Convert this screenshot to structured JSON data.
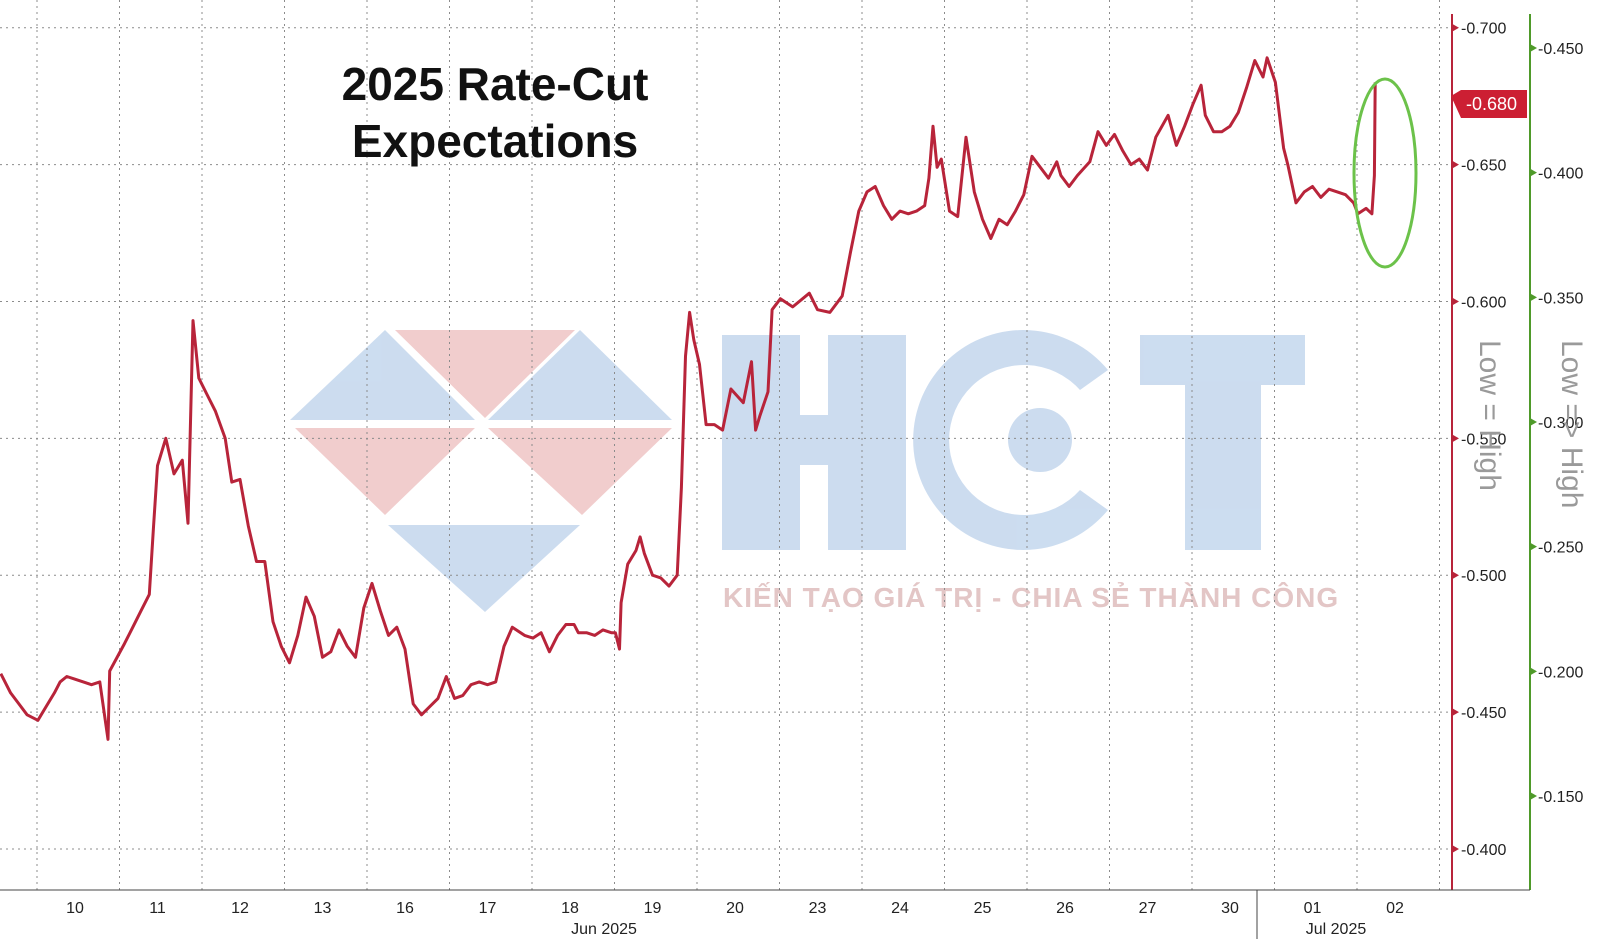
{
  "chart_data": {
    "type": "line",
    "title_lines": [
      "2025 Rate-Cut",
      "Expectations"
    ],
    "x_ticks": [
      "10",
      "11",
      "12",
      "13",
      "16",
      "17",
      "18",
      "19",
      "20",
      "23",
      "24",
      "25",
      "26",
      "27",
      "30",
      "01",
      "02"
    ],
    "month_labels": [
      "Jun 2025",
      "Jul 2025"
    ],
    "y_left": {
      "ticks": [
        "-0.700",
        "-0.650",
        "-0.600",
        "-0.550",
        "-0.500",
        "-0.450",
        "-0.400"
      ],
      "range": [
        -0.705,
        -0.385
      ],
      "axis_label": "Low = High",
      "color": "#b8243a"
    },
    "y_right": {
      "ticks": [
        "-0.450",
        "-0.400",
        "-0.350",
        "-0.300",
        "-0.250",
        "-0.200",
        "-0.150"
      ],
      "axis_label": "Low => High",
      "color": "#4f9a2a"
    },
    "last_value_label": "-0.680",
    "series": [
      {
        "color": "#b8243a",
        "points": [
          [
            0.0,
            -0.464
          ],
          [
            0.12,
            -0.457
          ],
          [
            0.22,
            -0.453
          ],
          [
            0.32,
            -0.449
          ],
          [
            0.45,
            -0.447
          ],
          [
            0.55,
            -0.452
          ],
          [
            0.65,
            -0.457
          ],
          [
            0.72,
            -0.461
          ],
          [
            0.8,
            -0.463
          ],
          [
            0.9,
            -0.462
          ],
          [
            1.0,
            -0.461
          ],
          [
            1.1,
            -0.46
          ],
          [
            1.2,
            -0.461
          ],
          [
            1.3,
            -0.44
          ],
          [
            1.32,
            -0.465
          ],
          [
            1.5,
            -0.475
          ],
          [
            1.6,
            -0.481
          ],
          [
            1.7,
            -0.487
          ],
          [
            1.8,
            -0.493
          ],
          [
            1.85,
            -0.517
          ],
          [
            1.9,
            -0.54
          ],
          [
            2.0,
            -0.55
          ],
          [
            2.1,
            -0.537
          ],
          [
            2.2,
            -0.542
          ],
          [
            2.27,
            -0.519
          ],
          [
            2.33,
            -0.593
          ],
          [
            2.4,
            -0.572
          ],
          [
            2.5,
            -0.566
          ],
          [
            2.6,
            -0.56
          ],
          [
            2.72,
            -0.55
          ],
          [
            2.8,
            -0.534
          ],
          [
            2.9,
            -0.535
          ],
          [
            3.0,
            -0.518
          ],
          [
            3.1,
            -0.505
          ],
          [
            3.2,
            -0.505
          ],
          [
            3.3,
            -0.483
          ],
          [
            3.4,
            -0.474
          ],
          [
            3.5,
            -0.468
          ],
          [
            3.6,
            -0.478
          ],
          [
            3.7,
            -0.492
          ],
          [
            3.8,
            -0.485
          ],
          [
            3.9,
            -0.47
          ],
          [
            4.0,
            -0.472
          ],
          [
            4.1,
            -0.48
          ],
          [
            4.2,
            -0.474
          ],
          [
            4.3,
            -0.47
          ],
          [
            4.4,
            -0.488
          ],
          [
            4.5,
            -0.497
          ],
          [
            4.6,
            -0.487
          ],
          [
            4.7,
            -0.478
          ],
          [
            4.8,
            -0.481
          ],
          [
            4.9,
            -0.473
          ],
          [
            5.0,
            -0.453
          ],
          [
            5.1,
            -0.449
          ],
          [
            5.2,
            -0.452
          ],
          [
            5.3,
            -0.455
          ],
          [
            5.4,
            -0.463
          ],
          [
            5.5,
            -0.455
          ],
          [
            5.6,
            -0.456
          ],
          [
            5.7,
            -0.46
          ],
          [
            5.8,
            -0.461
          ],
          [
            5.9,
            -0.46
          ],
          [
            6.0,
            -0.461
          ],
          [
            6.1,
            -0.474
          ],
          [
            6.2,
            -0.481
          ],
          [
            6.35,
            -0.478
          ],
          [
            6.45,
            -0.477
          ],
          [
            6.55,
            -0.479
          ],
          [
            6.65,
            -0.472
          ],
          [
            6.75,
            -0.478
          ],
          [
            6.85,
            -0.482
          ],
          [
            6.95,
            -0.482
          ],
          [
            7.0,
            -0.479
          ],
          [
            7.1,
            -0.479
          ],
          [
            7.2,
            -0.478
          ],
          [
            7.3,
            -0.48
          ],
          [
            7.4,
            -0.479
          ],
          [
            7.45,
            -0.479
          ],
          [
            7.5,
            -0.473
          ],
          [
            7.52,
            -0.49
          ],
          [
            7.6,
            -0.504
          ],
          [
            7.7,
            -0.509
          ],
          [
            7.75,
            -0.514
          ],
          [
            7.8,
            -0.508
          ],
          [
            7.9,
            -0.5
          ],
          [
            8.0,
            -0.499
          ],
          [
            8.1,
            -0.496
          ],
          [
            8.2,
            -0.5
          ],
          [
            8.25,
            -0.532
          ],
          [
            8.3,
            -0.58
          ],
          [
            8.35,
            -0.596
          ],
          [
            8.4,
            -0.586
          ],
          [
            8.47,
            -0.577
          ],
          [
            8.55,
            -0.555
          ],
          [
            8.65,
            -0.555
          ],
          [
            8.75,
            -0.553
          ],
          [
            8.85,
            -0.568
          ],
          [
            9.0,
            -0.563
          ],
          [
            9.1,
            -0.578
          ],
          [
            9.15,
            -0.553
          ],
          [
            9.2,
            -0.558
          ],
          [
            9.3,
            -0.567
          ],
          [
            9.35,
            -0.597
          ],
          [
            9.45,
            -0.601
          ],
          [
            9.6,
            -0.598
          ],
          [
            9.8,
            -0.603
          ],
          [
            9.9,
            -0.597
          ],
          [
            10.05,
            -0.596
          ],
          [
            10.2,
            -0.602
          ],
          [
            10.3,
            -0.618
          ],
          [
            10.4,
            -0.633
          ],
          [
            10.5,
            -0.64
          ],
          [
            10.6,
            -0.642
          ],
          [
            10.7,
            -0.635
          ],
          [
            10.8,
            -0.63
          ],
          [
            10.9,
            -0.633
          ],
          [
            11.0,
            -0.632
          ],
          [
            11.1,
            -0.633
          ],
          [
            11.2,
            -0.635
          ],
          [
            11.25,
            -0.645
          ],
          [
            11.3,
            -0.664
          ],
          [
            11.35,
            -0.649
          ],
          [
            11.4,
            -0.652
          ],
          [
            11.5,
            -0.633
          ],
          [
            11.6,
            -0.631
          ],
          [
            11.7,
            -0.66
          ],
          [
            11.8,
            -0.64
          ],
          [
            11.9,
            -0.63
          ],
          [
            12.0,
            -0.623
          ],
          [
            12.1,
            -0.63
          ],
          [
            12.2,
            -0.628
          ],
          [
            12.3,
            -0.633
          ],
          [
            12.4,
            -0.639
          ],
          [
            12.5,
            -0.653
          ],
          [
            12.6,
            -0.649
          ],
          [
            12.7,
            -0.645
          ],
          [
            12.8,
            -0.651
          ],
          [
            12.85,
            -0.646
          ],
          [
            12.95,
            -0.642
          ],
          [
            13.05,
            -0.646
          ],
          [
            13.2,
            -0.651
          ],
          [
            13.3,
            -0.662
          ],
          [
            13.4,
            -0.657
          ],
          [
            13.5,
            -0.661
          ],
          [
            13.6,
            -0.655
          ],
          [
            13.7,
            -0.65
          ],
          [
            13.8,
            -0.652
          ],
          [
            13.9,
            -0.648
          ],
          [
            14.0,
            -0.66
          ],
          [
            14.15,
            -0.668
          ],
          [
            14.25,
            -0.657
          ],
          [
            14.35,
            -0.664
          ],
          [
            14.45,
            -0.672
          ],
          [
            14.55,
            -0.679
          ],
          [
            14.6,
            -0.668
          ],
          [
            14.7,
            -0.662
          ],
          [
            14.8,
            -0.662
          ],
          [
            14.9,
            -0.664
          ],
          [
            15.0,
            -0.669
          ],
          [
            15.1,
            -0.678
          ],
          [
            15.2,
            -0.688
          ],
          [
            15.3,
            -0.682
          ],
          [
            15.35,
            -0.689
          ],
          [
            15.45,
            -0.68
          ],
          [
            15.55,
            -0.656
          ],
          [
            15.6,
            -0.65
          ],
          [
            15.7,
            -0.636
          ],
          [
            15.8,
            -0.64
          ],
          [
            15.9,
            -0.642
          ],
          [
            16.0,
            -0.638
          ],
          [
            16.1,
            -0.641
          ],
          [
            16.2,
            -0.64
          ],
          [
            16.3,
            -0.639
          ],
          [
            16.4,
            -0.636
          ],
          [
            16.45,
            -0.632
          ],
          [
            16.55,
            -0.634
          ],
          [
            16.62,
            -0.632
          ],
          [
            16.65,
            -0.646
          ],
          [
            16.66,
            -0.68
          ]
        ]
      }
    ]
  },
  "watermark": {
    "brand": "HCT",
    "slogan": "KIẾN TẠO GIÁ TRỊ - CHIA SẺ THÀNH CÔNG"
  },
  "annotation": {
    "type": "ellipse",
    "color": "#6cc24a"
  }
}
